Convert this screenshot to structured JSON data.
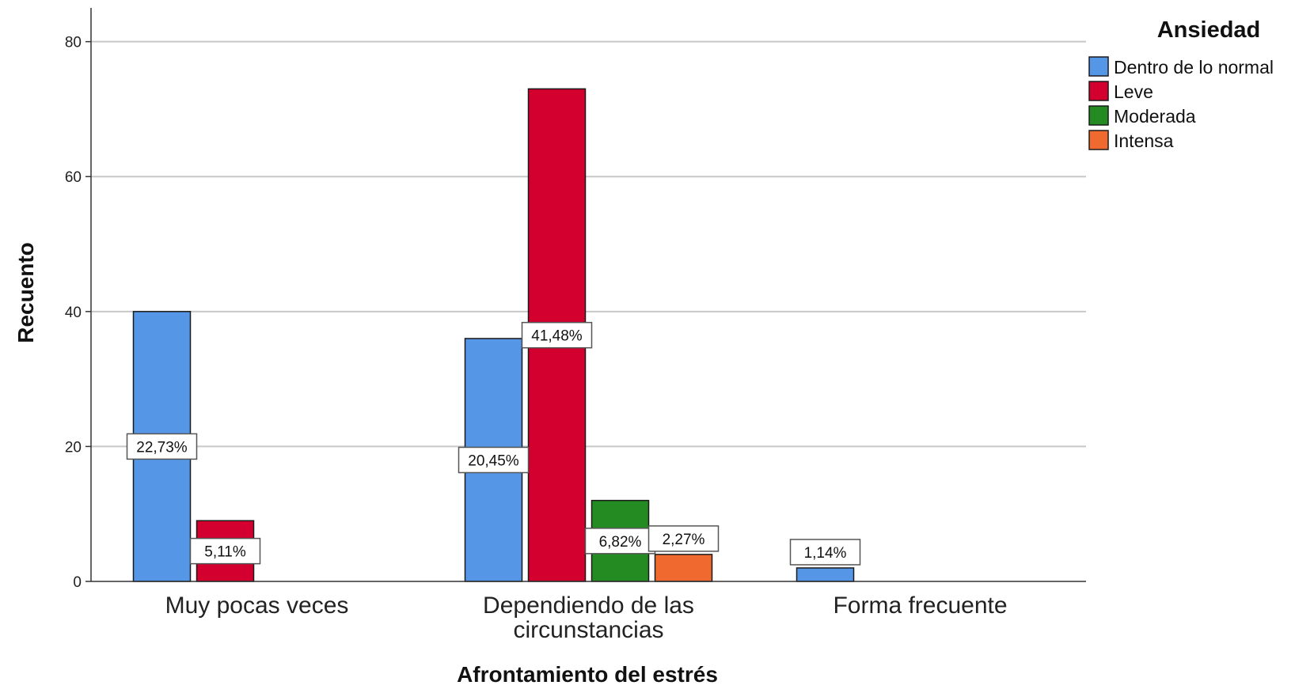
{
  "chart_data": {
    "type": "bar",
    "title": "",
    "xlabel": "Afrontamiento del estrés",
    "ylabel": "Recuento",
    "ylim": [
      0,
      85
    ],
    "yticks": [
      0,
      20,
      40,
      60,
      80
    ],
    "grid": true,
    "legend_title": "Ansiedad",
    "legend_position": "top-right",
    "categories": [
      [
        "Muy pocas veces"
      ],
      [
        "Dependiendo de las",
        "circunstancias"
      ],
      [
        "Forma frecuente"
      ]
    ],
    "series": [
      {
        "name": "Dentro de lo normal",
        "color": "#5596e6",
        "values": [
          40,
          36,
          2
        ],
        "labels": [
          "22,73%",
          "20,45%",
          "1,14%"
        ]
      },
      {
        "name": "Leve",
        "color": "#d3002f",
        "values": [
          9,
          73,
          0
        ],
        "labels": [
          "5,11%",
          "41,48%",
          ""
        ]
      },
      {
        "name": "Moderada",
        "color": "#238b22",
        "values": [
          0,
          12,
          0
        ],
        "labels": [
          "",
          "6,82%",
          ""
        ]
      },
      {
        "name": "Intensa",
        "color": "#f06a30",
        "values": [
          0,
          4,
          0
        ],
        "labels": [
          "",
          "2,27%",
          ""
        ]
      }
    ]
  }
}
